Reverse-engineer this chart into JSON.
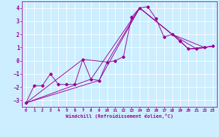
{
  "xlabel": "Windchill (Refroidissement éolien,°C)",
  "bg_color": "#cceeff",
  "line_color": "#990099",
  "grid_color": "#ffffff",
  "xlim": [
    -0.5,
    23.5
  ],
  "ylim": [
    -3.5,
    4.5
  ],
  "yticks": [
    -3,
    -2,
    -1,
    0,
    1,
    2,
    3,
    4
  ],
  "xticks": [
    0,
    1,
    2,
    3,
    4,
    5,
    6,
    7,
    8,
    9,
    10,
    11,
    12,
    13,
    14,
    15,
    16,
    17,
    18,
    19,
    20,
    21,
    22,
    23
  ],
  "series1_x": [
    0,
    1,
    2,
    3,
    4,
    5,
    6,
    7,
    8,
    9,
    10,
    11,
    12,
    13,
    14,
    15,
    16,
    17,
    18,
    19,
    20,
    21,
    22,
    23
  ],
  "series1_y": [
    -3.2,
    -1.9,
    -1.9,
    -1.0,
    -1.8,
    -1.8,
    -1.8,
    0.1,
    -1.4,
    -1.5,
    -0.1,
    0.0,
    0.3,
    3.3,
    4.0,
    4.1,
    3.2,
    1.8,
    2.0,
    1.5,
    0.9,
    0.9,
    1.0,
    1.1
  ],
  "series2_x": [
    0,
    7,
    10,
    14,
    18,
    20,
    23
  ],
  "series2_y": [
    -3.2,
    0.1,
    -0.1,
    4.0,
    2.0,
    0.9,
    1.1
  ],
  "series3_x": [
    0,
    9,
    14,
    18,
    21,
    23
  ],
  "series3_y": [
    -3.2,
    -1.5,
    4.0,
    2.0,
    0.9,
    1.1
  ],
  "series4_x": [
    0,
    8,
    14,
    18,
    22,
    23
  ],
  "series4_y": [
    -3.2,
    -1.4,
    4.0,
    2.0,
    1.0,
    1.1
  ]
}
